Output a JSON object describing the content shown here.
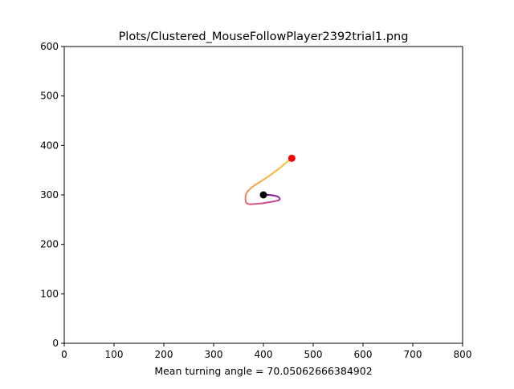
{
  "chart_data": {
    "type": "line",
    "title": "Plots/Clustered_MouseFollowPlayer2392trial1.png",
    "xlabel": "Mean turning angle = 70.05062666384902",
    "ylabel": "",
    "xlim": [
      0,
      800
    ],
    "ylim": [
      0,
      600
    ],
    "xticks": [
      0,
      100,
      200,
      300,
      400,
      500,
      600,
      700,
      800
    ],
    "yticks": [
      0,
      100,
      200,
      300,
      400,
      500,
      600
    ],
    "grid": false,
    "legend": "none",
    "series": [
      {
        "kind": "trajectory",
        "gradient": [
          "#7a0aa0",
          "#c0409a",
          "#e06a7c",
          "#f6a04a",
          "#fbc430"
        ],
        "points": [
          [
            400,
            300
          ],
          [
            410,
            300
          ],
          [
            420,
            299
          ],
          [
            428,
            297
          ],
          [
            432,
            294
          ],
          [
            433,
            291
          ],
          [
            430,
            289
          ],
          [
            422,
            287
          ],
          [
            410,
            285
          ],
          [
            398,
            283
          ],
          [
            385,
            282
          ],
          [
            374,
            281
          ],
          [
            368,
            282
          ],
          [
            365,
            285
          ],
          [
            364,
            290
          ],
          [
            364,
            296
          ],
          [
            365,
            302
          ],
          [
            369,
            308
          ],
          [
            375,
            314
          ],
          [
            383,
            320
          ],
          [
            393,
            326
          ],
          [
            405,
            334
          ],
          [
            418,
            343
          ],
          [
            430,
            352
          ],
          [
            442,
            362
          ],
          [
            457,
            374
          ]
        ]
      }
    ],
    "markers": [
      {
        "x": 457,
        "y": 374,
        "color": "#ff0000"
      },
      {
        "x": 400,
        "y": 300,
        "color": "#000000"
      }
    ]
  }
}
